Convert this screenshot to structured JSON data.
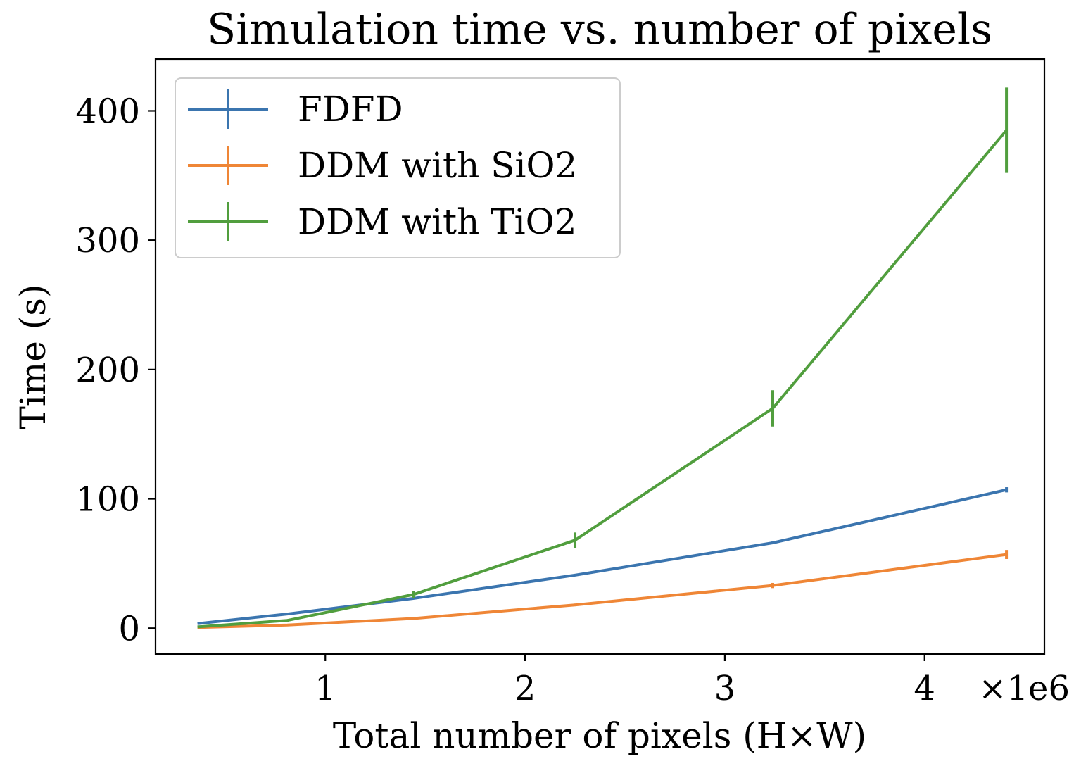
{
  "chart_data": {
    "type": "line",
    "title": "Simulation time vs. number of pixels",
    "xlabel": "Total number of pixels (H×W)",
    "ylabel": "Time (s)",
    "x_offset_label": "×1e6",
    "xlim": [
      0.15,
      4.6
    ],
    "ylim": [
      -20,
      440
    ],
    "xticks": [
      {
        "value": 1,
        "label": "1"
      },
      {
        "value": 2,
        "label": "2"
      },
      {
        "value": 3,
        "label": "3"
      },
      {
        "value": 4,
        "label": "4"
      }
    ],
    "yticks": [
      {
        "value": 0,
        "label": "0"
      },
      {
        "value": 100,
        "label": "100"
      },
      {
        "value": 200,
        "label": "200"
      },
      {
        "value": 300,
        "label": "300"
      },
      {
        "value": 400,
        "label": "400"
      }
    ],
    "legend_position": "upper-left",
    "grid": false,
    "series": [
      {
        "name": "FDFD",
        "color": "#3b75af",
        "x": [
          0.36,
          0.81,
          1.44,
          2.25,
          3.24,
          4.41
        ],
        "y": [
          3.5,
          11,
          23,
          41,
          66,
          107
        ],
        "err": [
          0,
          0,
          0,
          0,
          1,
          2
        ]
      },
      {
        "name": "DDM with SiO2",
        "color": "#ef8636",
        "x": [
          0.36,
          0.81,
          1.44,
          2.25,
          3.24,
          4.41
        ],
        "y": [
          0.5,
          2.5,
          7.5,
          18,
          33,
          57
        ],
        "err": [
          0,
          0,
          0,
          1,
          2,
          3.5
        ]
      },
      {
        "name": "DDM with TiO2",
        "color": "#519e3e",
        "x": [
          0.36,
          0.81,
          1.44,
          2.25,
          3.24,
          4.41
        ],
        "y": [
          1,
          6,
          26,
          68,
          170,
          385
        ],
        "err": [
          0,
          1,
          3,
          6,
          14,
          33
        ]
      }
    ]
  }
}
